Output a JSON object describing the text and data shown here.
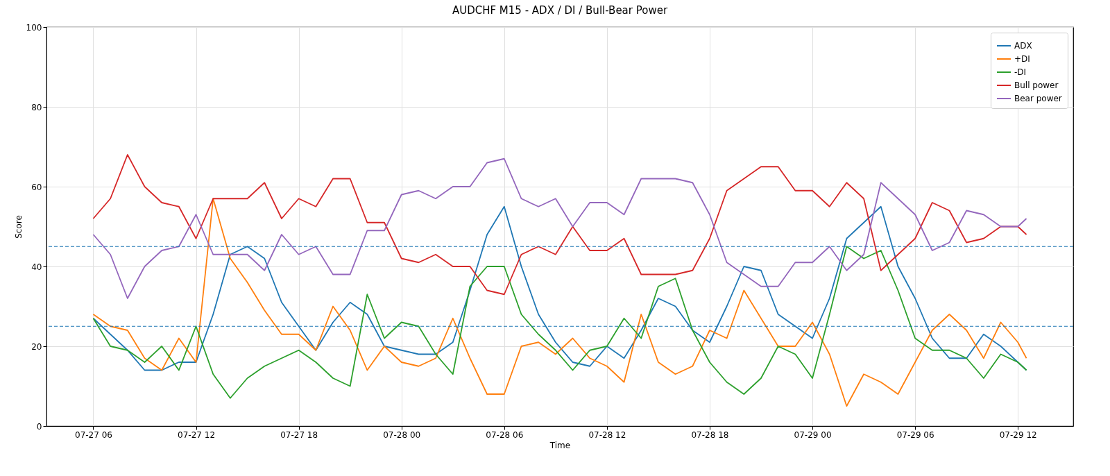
{
  "chart_data": {
    "type": "line",
    "title": "AUDCHF M15 - ADX / DI / Bull-Bear Power",
    "xlabel": "Time",
    "ylabel": "Score",
    "x": [
      "--07-27T06:00",
      "--07-27T07:00",
      "--07-27T08:00",
      "--07-27T09:00",
      "--07-27T10:00",
      "--07-27T11:00",
      "--07-27T12:00",
      "--07-27T13:00",
      "--07-27T14:00",
      "--07-27T15:00",
      "--07-27T16:00",
      "--07-27T17:00",
      "--07-27T18:00",
      "--07-27T19:00",
      "--07-27T20:00",
      "--07-27T21:00",
      "--07-27T22:00",
      "--07-27T23:00",
      "--07-28T00:00",
      "--07-28T01:00",
      "--07-28T02:00",
      "--07-28T03:00",
      "--07-28T04:00",
      "--07-28T05:00",
      "--07-28T06:00",
      "--07-28T07:00",
      "--07-28T08:00",
      "--07-28T09:00",
      "--07-28T10:00",
      "--07-28T11:00",
      "--07-28T12:00",
      "--07-28T13:00",
      "--07-28T14:00",
      "--07-28T15:00",
      "--07-28T16:00",
      "--07-28T17:00",
      "--07-28T18:00",
      "--07-28T19:00",
      "--07-28T20:00",
      "--07-28T21:00",
      "--07-28T22:00",
      "--07-28T23:00",
      "--07-29T00:00",
      "--07-29T01:00",
      "--07-29T02:00",
      "--07-29T03:00",
      "--07-29T04:00",
      "--07-29T05:00",
      "--07-29T06:00",
      "--07-29T07:00",
      "--07-29T08:00",
      "--07-29T09:00",
      "--07-29T10:00",
      "--07-29T11:00",
      "--07-29T12:00",
      "--07-29T12:30"
    ],
    "series": [
      {
        "name": "ADX",
        "color": "#1f77b4",
        "values": [
          27,
          23,
          19,
          14,
          14,
          16,
          16,
          28,
          43,
          45,
          42,
          31,
          25,
          19,
          26,
          31,
          28,
          20,
          19,
          18,
          18,
          21,
          34,
          48,
          55,
          40,
          28,
          21,
          16,
          15,
          20,
          17,
          24,
          32,
          30,
          24,
          21,
          30,
          40,
          39,
          28,
          25,
          22,
          32,
          47,
          51,
          55,
          40,
          32,
          22,
          17,
          17,
          23,
          20,
          16,
          14
        ]
      },
      {
        "name": "+DI",
        "color": "#ff7f0e",
        "values": [
          28,
          25,
          24,
          17,
          14,
          22,
          16,
          57,
          42,
          36,
          29,
          23,
          23,
          19,
          30,
          24,
          14,
          20,
          16,
          15,
          17,
          27,
          17,
          8,
          8,
          20,
          21,
          18,
          22,
          17,
          15,
          11,
          28,
          16,
          13,
          15,
          24,
          22,
          34,
          27,
          20,
          20,
          26,
          18,
          5,
          13,
          11,
          8,
          16,
          24,
          28,
          24,
          17,
          26,
          21,
          17
        ]
      },
      {
        "name": "-DI",
        "color": "#2ca02c",
        "values": [
          27,
          20,
          19,
          16,
          20,
          14,
          25,
          13,
          7,
          12,
          15,
          17,
          19,
          16,
          12,
          10,
          33,
          22,
          26,
          25,
          18,
          13,
          35,
          40,
          40,
          28,
          23,
          19,
          14,
          19,
          20,
          27,
          22,
          35,
          37,
          24,
          16,
          11,
          8,
          12,
          20,
          18,
          12,
          28,
          45,
          42,
          44,
          34,
          22,
          19,
          19,
          17,
          12,
          18,
          16,
          14
        ]
      },
      {
        "name": "Bull power",
        "color": "#d62728",
        "values": [
          52,
          57,
          68,
          60,
          56,
          55,
          47,
          57,
          57,
          57,
          61,
          52,
          57,
          55,
          62,
          62,
          51,
          51,
          42,
          41,
          43,
          40,
          40,
          34,
          33,
          43,
          45,
          43,
          50,
          44,
          44,
          47,
          38,
          38,
          38,
          39,
          47,
          59,
          62,
          65,
          65,
          59,
          59,
          55,
          61,
          57,
          39,
          43,
          47,
          56,
          54,
          46,
          47,
          50,
          50,
          48
        ]
      },
      {
        "name": "Bear power",
        "color": "#9467bd",
        "values": [
          48,
          43,
          32,
          40,
          44,
          45,
          53,
          43,
          43,
          43,
          39,
          48,
          43,
          45,
          38,
          38,
          49,
          49,
          58,
          59,
          57,
          60,
          60,
          66,
          67,
          57,
          55,
          57,
          50,
          56,
          56,
          53,
          62,
          62,
          62,
          61,
          53,
          41,
          38,
          35,
          35,
          41,
          41,
          45,
          39,
          43,
          61,
          57,
          53,
          44,
          46,
          54,
          53,
          50,
          50,
          52
        ]
      }
    ],
    "xlim": [
      "--07-27T03:16",
      "--07-29T15:14"
    ],
    "xticks": [
      {
        "value": "--07-27T06:00",
        "label": "07-27 06"
      },
      {
        "value": "--07-27T12:00",
        "label": "07-27 12"
      },
      {
        "value": "--07-27T18:00",
        "label": "07-27 18"
      },
      {
        "value": "--07-28T00:00",
        "label": "07-28 00"
      },
      {
        "value": "--07-28T06:00",
        "label": "07-28 06"
      },
      {
        "value": "--07-28T12:00",
        "label": "07-28 12"
      },
      {
        "value": "--07-28T18:00",
        "label": "07-28 18"
      },
      {
        "value": "--07-29T00:00",
        "label": "07-29 00"
      },
      {
        "value": "--07-29T06:00",
        "label": "07-29 06"
      },
      {
        "value": "--07-29T12:00",
        "label": "07-29 12"
      }
    ],
    "ylim": [
      0,
      100
    ],
    "yticks": [
      0,
      20,
      40,
      60,
      80,
      100
    ],
    "ref_lines": [
      {
        "axis": "y",
        "value": 45,
        "color": "#1f77b4",
        "line_style": "dashed"
      },
      {
        "axis": "y",
        "value": 25,
        "color": "#1f77b4",
        "line_style": "dashed"
      }
    ],
    "grid": true,
    "legend": "top right",
    "line_style": "solid"
  }
}
